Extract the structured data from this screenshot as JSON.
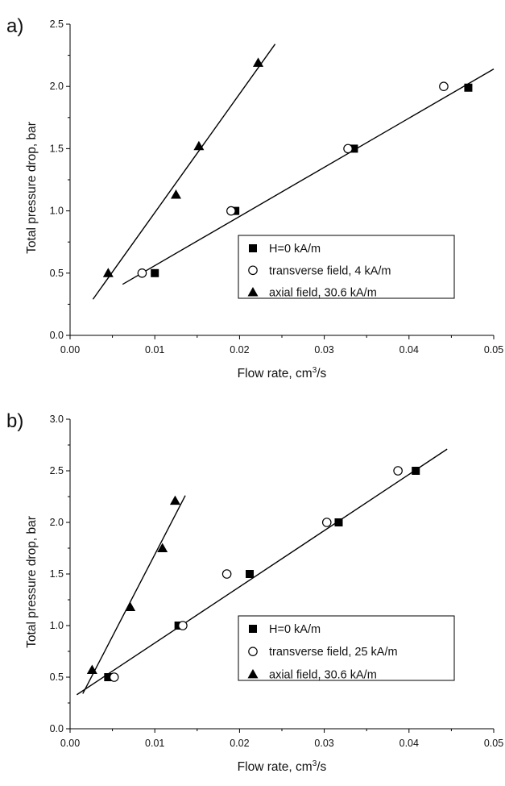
{
  "chart_data": [
    {
      "type": "scatter",
      "panel_label": "a)",
      "xlabel": "Flow rate, cm",
      "xlabel_sup": "3",
      "xlabel_tail": "/s",
      "ylabel": "Total pressure drop, bar",
      "xlim": [
        0.0,
        0.05
      ],
      "ylim": [
        0.0,
        2.5
      ],
      "x_ticks": [
        "0.00",
        "0.01",
        "0.02",
        "0.03",
        "0.04",
        "0.05"
      ],
      "y_ticks": [
        "0.0",
        "0.5",
        "1.0",
        "1.5",
        "2.0",
        "2.5"
      ],
      "grid": false,
      "legend_position": "lower-right",
      "series": [
        {
          "name": "H=0 kA/m",
          "marker": "square",
          "points": [
            [
              0.01,
              0.5
            ],
            [
              0.0195,
              1.0
            ],
            [
              0.0335,
              1.5
            ],
            [
              0.047,
              1.99
            ]
          ]
        },
        {
          "name": "transverse field, 4 kA/m",
          "marker": "circle",
          "points": [
            [
              0.0085,
              0.5
            ],
            [
              0.019,
              1.0
            ],
            [
              0.0328,
              1.5
            ],
            [
              0.0441,
              2.0
            ]
          ]
        },
        {
          "name": "axial field, 30.6 kA/m",
          "marker": "triangle",
          "points": [
            [
              0.0045,
              0.5
            ],
            [
              0.0125,
              1.13
            ],
            [
              0.0152,
              1.52
            ],
            [
              0.0222,
              2.19
            ]
          ]
        }
      ],
      "fit_lines": [
        {
          "from": [
            0.0062,
            0.41
          ],
          "to": [
            0.05,
            2.14
          ]
        },
        {
          "from": [
            0.0027,
            0.29
          ],
          "to": [
            0.0242,
            2.34
          ]
        }
      ]
    },
    {
      "type": "scatter",
      "panel_label": "b)",
      "xlabel": "Flow rate, cm",
      "xlabel_sup": "3",
      "xlabel_tail": "/s",
      "ylabel": "Total pressure drop, bar",
      "xlim": [
        0.0,
        0.05
      ],
      "ylim": [
        0.0,
        3.0
      ],
      "x_ticks": [
        "0.00",
        "0.01",
        "0.02",
        "0.03",
        "0.04",
        "0.05"
      ],
      "y_ticks": [
        "0.0",
        "0.5",
        "1.0",
        "1.5",
        "2.0",
        "2.5",
        "3.0"
      ],
      "grid": false,
      "legend_position": "lower-right",
      "series": [
        {
          "name": "H=0 kA/m",
          "marker": "square",
          "points": [
            [
              0.0045,
              0.5
            ],
            [
              0.0128,
              1.0
            ],
            [
              0.0212,
              1.5
            ],
            [
              0.0317,
              2.0
            ],
            [
              0.0408,
              2.5
            ]
          ]
        },
        {
          "name": "transverse field, 25 kA/m",
          "marker": "circle",
          "points": [
            [
              0.0052,
              0.5
            ],
            [
              0.0133,
              1.0
            ],
            [
              0.0185,
              1.5
            ],
            [
              0.0303,
              2.0
            ],
            [
              0.0387,
              2.5
            ]
          ]
        },
        {
          "name": "axial field, 30.6 kA/m",
          "marker": "triangle",
          "points": [
            [
              0.0026,
              0.57
            ],
            [
              0.0071,
              1.18
            ],
            [
              0.0109,
              1.75
            ],
            [
              0.0124,
              2.21
            ]
          ]
        }
      ],
      "fit_lines": [
        {
          "from": [
            0.0008,
            0.33
          ],
          "to": [
            0.0445,
            2.71
          ]
        },
        {
          "from": [
            0.0015,
            0.34
          ],
          "to": [
            0.0136,
            2.26
          ]
        }
      ]
    }
  ]
}
